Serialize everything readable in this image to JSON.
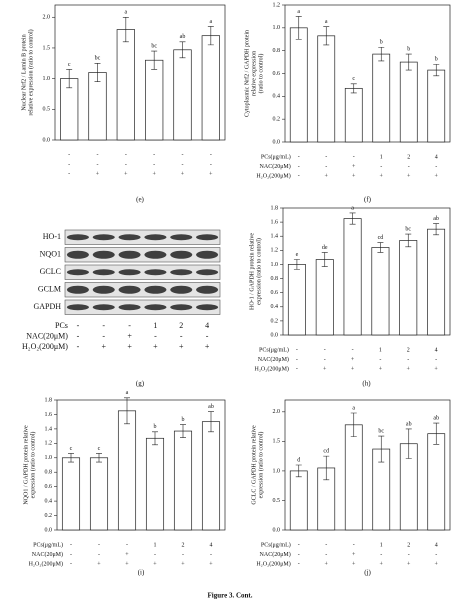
{
  "caption": "Figure 3. Cont.",
  "blot": {
    "panel": "(g)",
    "labels": [
      "HO-1",
      "NQO1",
      "GCLC",
      "GCLM",
      "GAPDH"
    ],
    "conditions": [
      {
        "label": "PCs",
        "values": [
          "-",
          "-",
          "-",
          "1",
          "2",
          "4"
        ]
      },
      {
        "label": "NAC(20μM)",
        "values": [
          "-",
          "-",
          "+",
          "-",
          "-",
          "-"
        ]
      },
      {
        "label": "H₂O₂(200μM)",
        "values": [
          "-",
          "+",
          "+",
          "+",
          "+",
          "+"
        ]
      }
    ]
  },
  "chart_data": [
    {
      "type": "bar",
      "panel": "(e)",
      "ylabel": [
        "Nuclear Nrf2 / Lamin B protein",
        "relative expression (ratio to control)"
      ],
      "values": [
        1.0,
        1.1,
        1.8,
        1.3,
        1.47,
        1.7
      ],
      "errors": [
        0.15,
        0.15,
        0.2,
        0.15,
        0.13,
        0.15
      ],
      "annotations": [
        "c",
        "bc",
        "a",
        "bc",
        "ab",
        "a"
      ],
      "ylim": [
        0,
        2.2
      ],
      "yticks": [
        {
          "value": 0,
          "label": "0.0"
        },
        0.5,
        {
          "value": 1,
          "label": "1.0"
        },
        1.5,
        {
          "value": 2,
          "label": "2.0"
        }
      ],
      "conditions": [
        {
          "values": [
            "-",
            "-",
            "-",
            "-",
            "-",
            "-"
          ]
        },
        {
          "values": [
            "-",
            "-",
            "-",
            "-",
            "-",
            "-"
          ]
        },
        {
          "values": [
            "-",
            "+",
            "+",
            "+",
            "+",
            "+"
          ]
        }
      ]
    },
    {
      "type": "bar",
      "panel": "(f)",
      "ylabel": [
        "Cytoplasmic Nrf2 / GAPDH protein",
        "relative expression",
        "(ratio to control)"
      ],
      "values": [
        1.0,
        0.93,
        0.47,
        0.77,
        0.7,
        0.63
      ],
      "errors": [
        0.1,
        0.08,
        0.04,
        0.06,
        0.07,
        0.05
      ],
      "annotations": [
        "a",
        "a",
        "c",
        "b",
        "b",
        "b"
      ],
      "ylim": [
        0,
        1.2
      ],
      "yticks": [
        {
          "value": 0,
          "label": "0.0"
        },
        0.2,
        0.4,
        0.6,
        0.8,
        {
          "value": 1,
          "label": "1.0"
        },
        1.2
      ],
      "conditions": [
        {
          "label": "PCs(μg/mL)",
          "values": [
            "-",
            "-",
            "-",
            "1",
            "2",
            "4"
          ]
        },
        {
          "label": "NAC(20μM)",
          "values": [
            "-",
            "-",
            "+",
            "-",
            "-",
            "-"
          ]
        },
        {
          "label": "H₂O₂(200μM)",
          "values": [
            "-",
            "+",
            "+",
            "+",
            "+",
            "+"
          ]
        }
      ]
    },
    {
      "type": "bar",
      "panel": "(h)",
      "ylabel": [
        "HO-1 / GAPDH protein relative",
        "expression (ratio to control)"
      ],
      "values": [
        1.0,
        1.07,
        1.65,
        1.24,
        1.34,
        1.5
      ],
      "errors": [
        0.07,
        0.1,
        0.08,
        0.07,
        0.09,
        0.08
      ],
      "annotations": [
        "e",
        "de",
        "a",
        "cd",
        "bc",
        "ab"
      ],
      "ylim": [
        0,
        1.8
      ],
      "yticks": [
        {
          "value": 0,
          "label": "0.0"
        },
        0.2,
        0.4,
        0.6,
        0.8,
        {
          "value": 1,
          "label": "1.0"
        },
        1.2,
        1.4,
        1.6,
        1.8
      ],
      "conditions": [
        {
          "label": "PCs(μg/mL)",
          "values": [
            "-",
            "-",
            "-",
            "1",
            "2",
            "4"
          ]
        },
        {
          "label": "NAC(20μM)",
          "values": [
            "-",
            "-",
            "+",
            "-",
            "-",
            "-"
          ]
        },
        {
          "label": "H₂O₂(200μM)",
          "values": [
            "-",
            "+",
            "+",
            "+",
            "+",
            "+"
          ]
        }
      ]
    },
    {
      "type": "bar",
      "panel": "(i)",
      "ylabel": [
        "NQO1 / GAPDH protein relative",
        "expression (ratio to control)"
      ],
      "values": [
        1.0,
        1.0,
        1.65,
        1.27,
        1.37,
        1.5
      ],
      "errors": [
        0.06,
        0.06,
        0.18,
        0.09,
        0.09,
        0.14
      ],
      "annotations": [
        "c",
        "c",
        "a",
        "b",
        "b",
        "ab"
      ],
      "ylim": [
        0,
        1.8
      ],
      "yticks": [
        {
          "value": 0,
          "label": "0.0"
        },
        0.2,
        0.4,
        0.6,
        0.8,
        {
          "value": 1,
          "label": "1.0"
        },
        1.2,
        1.4,
        1.6,
        1.8
      ],
      "conditions": [
        {
          "label": "PCs(μg/mL)",
          "values": [
            "-",
            "-",
            "-",
            "1",
            "2",
            "4"
          ]
        },
        {
          "label": "NAC(20μM)",
          "values": [
            "-",
            "-",
            "+",
            "-",
            "-",
            "-"
          ]
        },
        {
          "label": "H₂O₂(200μM)",
          "values": [
            "-",
            "+",
            "+",
            "+",
            "+",
            "+"
          ]
        }
      ]
    },
    {
      "type": "bar",
      "panel": "(j)",
      "ylabel": [
        "GCLC / GAPDH protein relative",
        "expression (ratio to control)"
      ],
      "values": [
        1.0,
        1.05,
        1.78,
        1.37,
        1.46,
        1.63
      ],
      "errors": [
        0.1,
        0.2,
        0.2,
        0.22,
        0.25,
        0.18
      ],
      "annotations": [
        "d",
        "cd",
        "a",
        "bc",
        "ab",
        "ab"
      ],
      "ylim": [
        0,
        2.2
      ],
      "yticks": [
        {
          "value": 0,
          "label": "0.0"
        },
        0.5,
        {
          "value": 1,
          "label": "1.0"
        },
        1.5,
        {
          "value": 2,
          "label": "2.0"
        }
      ],
      "conditions": [
        {
          "label": "PCs(μg/mL)",
          "values": [
            "-",
            "-",
            "-",
            "1",
            "2",
            "4"
          ]
        },
        {
          "label": "NAC(20μM)",
          "values": [
            "-",
            "-",
            "+",
            "-",
            "-",
            "-"
          ]
        },
        {
          "label": "H₂O₂(200μM)",
          "values": [
            "-",
            "+",
            "+",
            "+",
            "+",
            "+"
          ]
        }
      ]
    }
  ]
}
